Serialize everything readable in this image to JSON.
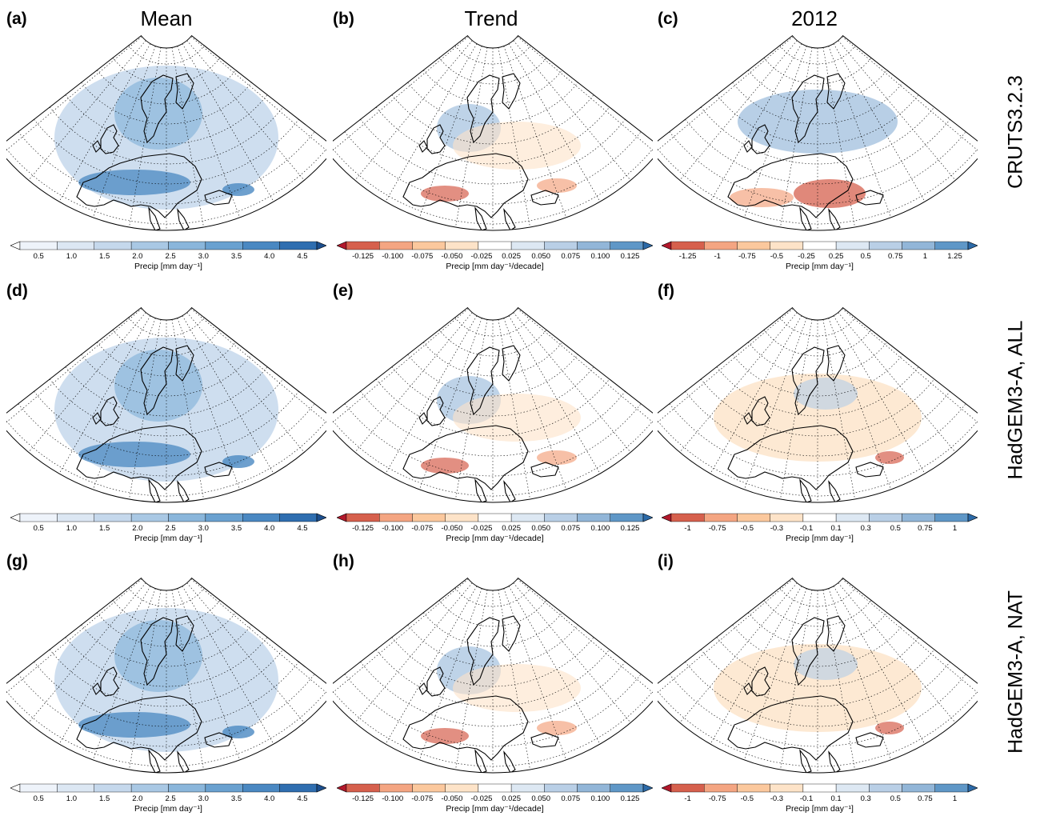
{
  "column_titles": [
    "Mean",
    "Trend",
    "2012"
  ],
  "row_titles": [
    "CRUTS3.2.3",
    "HadGEM3-A, ALL",
    "HadGEM3-A, NAT"
  ],
  "panels": [
    {
      "label": "(a)",
      "kind": "mean"
    },
    {
      "label": "(b)",
      "kind": "trend"
    },
    {
      "label": "(c)",
      "kind": "y2012_obs"
    },
    {
      "label": "(d)",
      "kind": "mean"
    },
    {
      "label": "(e)",
      "kind": "trend"
    },
    {
      "label": "(f)",
      "kind": "y2012_mod"
    },
    {
      "label": "(g)",
      "kind": "mean"
    },
    {
      "label": "(h)",
      "kind": "trend"
    },
    {
      "label": "(i)",
      "kind": "y2012_mod"
    }
  ],
  "colorbars": {
    "mean": {
      "caption": "Precip [mm day⁻¹]",
      "ticks": [
        "0.5",
        "1.0",
        "1.5",
        "2.0",
        "2.5",
        "3.0",
        "3.5",
        "4.0",
        "4.5"
      ],
      "colors": [
        "#ffffff",
        "#eef3fa",
        "#dce7f3",
        "#c5d8ec",
        "#a9c8e4",
        "#8ab6db",
        "#6aa1d0",
        "#4a88c2",
        "#2f6eb0",
        "#1c4f8e"
      ]
    },
    "trend": {
      "caption": "Precip [mm day⁻¹/decade]",
      "ticks": [
        "-0.125",
        "-0.100",
        "-0.075",
        "-0.050",
        "-0.025",
        "0.025",
        "0.050",
        "0.075",
        "0.100",
        "0.125"
      ],
      "colors": [
        "#b2182b",
        "#d6604d",
        "#f4a582",
        "#fbc89d",
        "#fde3c8",
        "#ffffff",
        "#dde8f3",
        "#b9cfe6",
        "#92b6d8",
        "#5f97c7",
        "#2c6aa8"
      ]
    },
    "y2012_obs": {
      "caption": "Precip [mm day⁻¹]",
      "ticks": [
        "-1.25",
        "-1",
        "-0.75",
        "-0.5",
        "-0.25",
        "0.25",
        "0.5",
        "0.75",
        "1",
        "1.25"
      ],
      "colors": [
        "#b2182b",
        "#d6604d",
        "#f4a582",
        "#fbc89d",
        "#fde3c8",
        "#ffffff",
        "#dde8f3",
        "#b9cfe6",
        "#92b6d8",
        "#5f97c7",
        "#2c6aa8"
      ]
    },
    "y2012_mod": {
      "caption": "Precip [mm day⁻¹]",
      "ticks": [
        "-1",
        "-0.75",
        "-0.5",
        "-0.3",
        "-0.1",
        "0.1",
        "0.3",
        "0.5",
        "0.75",
        "1"
      ],
      "colors": [
        "#b2182b",
        "#d6604d",
        "#f4a582",
        "#fbc89d",
        "#fde3c8",
        "#ffffff",
        "#dde8f3",
        "#b9cfe6",
        "#92b6d8",
        "#5f97c7",
        "#2c6aa8"
      ]
    }
  }
}
